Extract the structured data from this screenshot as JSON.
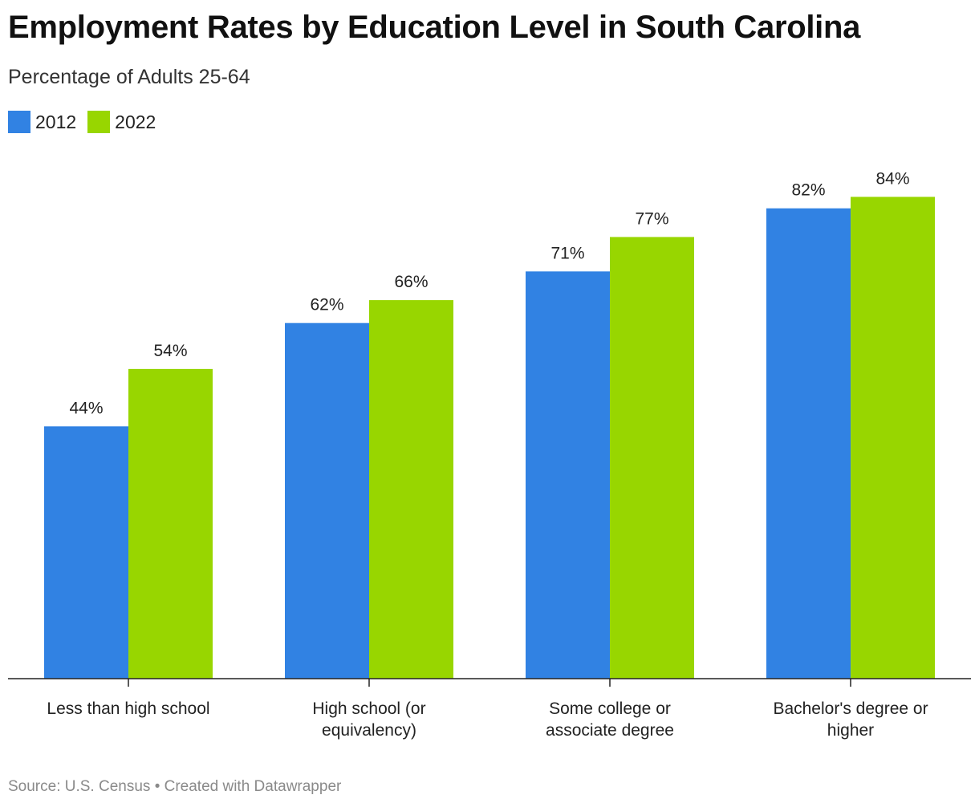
{
  "title": "Employment Rates by Education Level in South Carolina",
  "subtitle": "Percentage of Adults 25-64",
  "footer": "Source: U.S. Census • Created with Datawrapper",
  "colors": {
    "2012": "#3182e3",
    "2022": "#98d600",
    "axis": "#222222"
  },
  "chart_data": {
    "type": "bar",
    "title": "Employment Rates by Education Level in South Carolina",
    "subtitle": "Percentage of Adults 25-64",
    "categories": [
      [
        "Less than high school"
      ],
      [
        "High school (or",
        "equivalency)"
      ],
      [
        "Some college or",
        "associate degree"
      ],
      [
        "Bachelor's degree or",
        "higher"
      ]
    ],
    "series": [
      {
        "name": "2012",
        "values": [
          44,
          62,
          71,
          82
        ],
        "labels": [
          "44%",
          "62%",
          "71%",
          "82%"
        ]
      },
      {
        "name": "2022",
        "values": [
          54,
          66,
          77,
          84
        ],
        "labels": [
          "54%",
          "66%",
          "77%",
          "84%"
        ]
      }
    ],
    "ylim": [
      0,
      100
    ],
    "legend": "top-left",
    "grid": false
  }
}
